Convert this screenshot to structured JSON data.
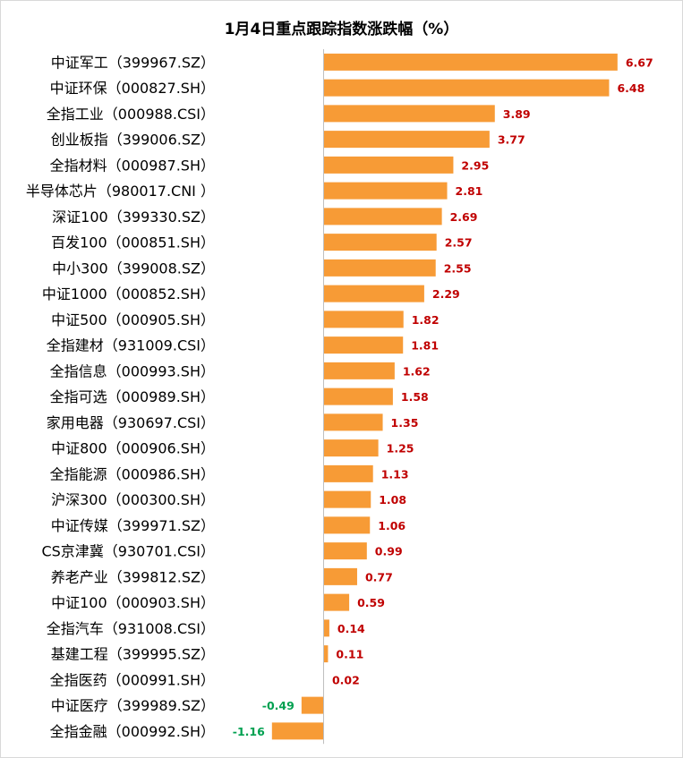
{
  "chart_data": {
    "type": "bar",
    "orientation": "horizontal",
    "title": "1月4日重点跟踪指数涨跌幅（%）",
    "xlim": [
      -1.6,
      7.2
    ],
    "grid": false,
    "legend": "none",
    "colors": {
      "bar": "#f79b36",
      "positive_label": "#c00000",
      "negative_label": "#00a050",
      "axis": "#bfbfbf"
    },
    "categories": [
      "中证军工（399967.SZ）",
      "中证环保（000827.SH）",
      "全指工业（000988.CSI）",
      "创业板指（399006.SZ）",
      "全指材料（000987.SH）",
      "半导体芯片（980017.CNI ）",
      "深证100（399330.SZ）",
      "百发100（000851.SH）",
      "中小300（399008.SZ）",
      "中证1000（000852.SH）",
      "中证500（000905.SH）",
      "全指建材（931009.CSI）",
      "全指信息（000993.SH）",
      "全指可选（000989.SH）",
      "家用电器（930697.CSI）",
      "中证800（000906.SH）",
      "全指能源（000986.SH）",
      "沪深300（000300.SH）",
      "中证传媒（399971.SZ）",
      "CS京津冀（930701.CSI）",
      "养老产业（399812.SZ）",
      "中证100（000903.SH）",
      "全指汽车（931008.CSI）",
      "基建工程（399995.SZ）",
      "全指医药（000991.SH）",
      "中证医疗（399989.SZ）",
      "全指金融（000992.SH）"
    ],
    "values": [
      6.67,
      6.48,
      3.89,
      3.77,
      2.95,
      2.81,
      2.69,
      2.57,
      2.55,
      2.29,
      1.82,
      1.81,
      1.62,
      1.58,
      1.35,
      1.25,
      1.13,
      1.08,
      1.06,
      0.99,
      0.77,
      0.59,
      0.14,
      0.11,
      0.02,
      -0.49,
      -1.16
    ],
    "labels": [
      "6.67",
      "6.48",
      "3.89",
      "3.77",
      "2.95",
      "2.81",
      "2.69",
      "2.57",
      "2.55",
      "2.29",
      "1.82",
      "1.81",
      "1.62",
      "1.58",
      "1.35",
      "1.25",
      "1.13",
      "1.08",
      "1.06",
      "0.99",
      "0.77",
      "0.59",
      "0.14",
      "0.11",
      "0.02",
      "-0.49",
      "-1.16"
    ]
  }
}
